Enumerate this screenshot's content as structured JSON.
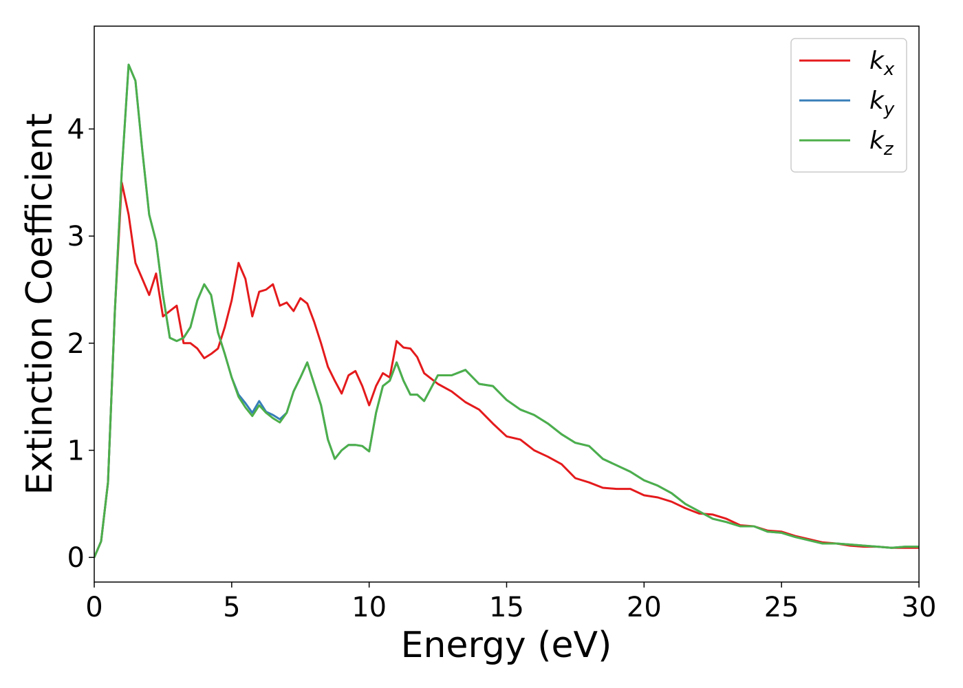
{
  "chart_data": {
    "type": "line",
    "xlabel": "Energy (eV)",
    "ylabel": "Extinction Coefficient",
    "x": [
      0,
      0.25,
      0.5,
      0.75,
      1,
      1.25,
      1.5,
      1.75,
      2,
      2.25,
      2.5,
      2.75,
      3,
      3.25,
      3.5,
      3.75,
      4,
      4.25,
      4.5,
      4.75,
      5,
      5.25,
      5.5,
      5.75,
      6,
      6.25,
      6.5,
      6.75,
      7,
      7.25,
      7.5,
      7.75,
      8,
      8.25,
      8.5,
      8.75,
      9,
      9.25,
      9.5,
      9.75,
      10,
      10.25,
      10.5,
      10.75,
      11,
      11.25,
      11.5,
      11.75,
      12,
      12.5,
      13,
      13.5,
      14,
      14.5,
      15,
      15.5,
      16,
      16.5,
      17,
      17.5,
      18,
      18.5,
      19,
      19.5,
      20,
      20.5,
      21,
      21.5,
      22,
      22.5,
      23,
      23.5,
      24,
      24.5,
      25,
      25.5,
      26,
      26.5,
      27,
      27.5,
      28,
      28.5,
      29,
      29.5,
      30
    ],
    "series": [
      {
        "name": "kx",
        "color": "#e41a1c",
        "values": [
          0,
          0.15,
          0.7,
          2.3,
          3.5,
          3.2,
          2.75,
          2.6,
          2.45,
          2.65,
          2.25,
          2.3,
          2.35,
          2.0,
          2.0,
          1.95,
          1.86,
          1.9,
          1.95,
          2.15,
          2.4,
          2.75,
          2.6,
          2.25,
          2.48,
          2.5,
          2.55,
          2.35,
          2.38,
          2.3,
          2.42,
          2.37,
          2.2,
          2.0,
          1.78,
          1.65,
          1.53,
          1.7,
          1.74,
          1.6,
          1.42,
          1.6,
          1.72,
          1.68,
          2.02,
          1.96,
          1.95,
          1.87,
          1.72,
          1.62,
          1.55,
          1.45,
          1.38,
          1.25,
          1.13,
          1.1,
          1.0,
          0.94,
          0.87,
          0.74,
          0.7,
          0.65,
          0.64,
          0.64,
          0.58,
          0.56,
          0.52,
          0.46,
          0.41,
          0.4,
          0.36,
          0.3,
          0.29,
          0.25,
          0.24,
          0.2,
          0.17,
          0.14,
          0.13,
          0.11,
          0.1,
          0.1,
          0.09,
          0.09,
          0.09
        ]
      },
      {
        "name": "ky",
        "color": "#377eb8",
        "values": [
          0,
          0.15,
          0.7,
          2.3,
          3.6,
          4.6,
          4.45,
          3.8,
          3.2,
          2.95,
          2.45,
          2.05,
          2.02,
          2.05,
          2.15,
          2.4,
          2.55,
          2.45,
          2.1,
          1.9,
          1.68,
          1.52,
          1.44,
          1.35,
          1.46,
          1.36,
          1.33,
          1.29,
          1.35,
          1.55,
          1.68,
          1.82,
          1.62,
          1.42,
          1.1,
          0.92,
          1.0,
          1.05,
          1.05,
          1.04,
          0.99,
          1.35,
          1.6,
          1.65,
          1.82,
          1.65,
          1.52,
          1.52,
          1.46,
          1.7,
          1.7,
          1.75,
          1.62,
          1.6,
          1.47,
          1.38,
          1.33,
          1.25,
          1.15,
          1.07,
          1.04,
          0.92,
          0.86,
          0.8,
          0.72,
          0.67,
          0.6,
          0.5,
          0.43,
          0.36,
          0.33,
          0.29,
          0.29,
          0.24,
          0.23,
          0.19,
          0.16,
          0.13,
          0.13,
          0.12,
          0.11,
          0.1,
          0.09,
          0.1,
          0.1
        ]
      },
      {
        "name": "kz",
        "color": "#4daf4a",
        "values": [
          0,
          0.15,
          0.7,
          2.3,
          3.6,
          4.6,
          4.45,
          3.8,
          3.2,
          2.95,
          2.45,
          2.05,
          2.02,
          2.05,
          2.15,
          2.4,
          2.55,
          2.45,
          2.1,
          1.9,
          1.68,
          1.5,
          1.4,
          1.32,
          1.42,
          1.35,
          1.3,
          1.26,
          1.35,
          1.55,
          1.68,
          1.82,
          1.62,
          1.42,
          1.1,
          0.92,
          1.0,
          1.05,
          1.05,
          1.04,
          0.99,
          1.35,
          1.6,
          1.65,
          1.82,
          1.65,
          1.52,
          1.52,
          1.46,
          1.7,
          1.7,
          1.75,
          1.62,
          1.6,
          1.47,
          1.38,
          1.33,
          1.25,
          1.15,
          1.07,
          1.04,
          0.92,
          0.86,
          0.8,
          0.72,
          0.67,
          0.6,
          0.5,
          0.43,
          0.36,
          0.33,
          0.29,
          0.29,
          0.24,
          0.23,
          0.19,
          0.16,
          0.13,
          0.13,
          0.12,
          0.11,
          0.1,
          0.09,
          0.1,
          0.1
        ]
      }
    ],
    "xlim": [
      0,
      30
    ],
    "xticks": [
      0,
      5,
      10,
      15,
      20,
      25,
      30
    ],
    "ylim": [
      -0.23,
      4.96
    ],
    "yticks": [
      0,
      1,
      2,
      3,
      4
    ],
    "grid": false,
    "legend": "upper right"
  }
}
